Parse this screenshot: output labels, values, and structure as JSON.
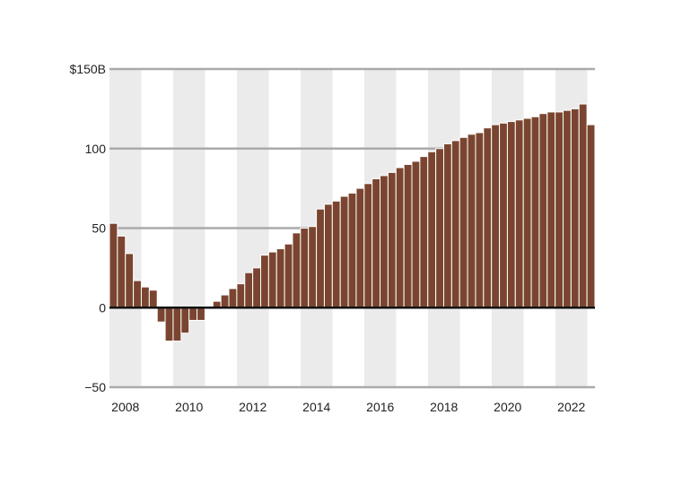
{
  "chart_data": {
    "type": "bar",
    "title": "",
    "xlabel": "",
    "ylabel": "",
    "ylim": [
      -50,
      150
    ],
    "y_ticks": [
      {
        "value": 150,
        "label": "$150B"
      },
      {
        "value": 100,
        "label": "100"
      },
      {
        "value": 50,
        "label": "50"
      },
      {
        "value": 0,
        "label": "0"
      },
      {
        "value": -50,
        "label": "−50"
      }
    ],
    "x_tick_labels": [
      "2008",
      "2010",
      "2012",
      "2014",
      "2016",
      "2018",
      "2020",
      "2022"
    ],
    "x_start_year": 2008,
    "x_end_year": 2023,
    "grid": true,
    "alternating_year_shading": true,
    "series": [
      {
        "values": [
          53,
          45,
          34,
          17,
          13,
          11,
          -9,
          -21,
          -21,
          -16,
          -8,
          -8,
          -1,
          4,
          8,
          12,
          15,
          22,
          25,
          33,
          35,
          37,
          40,
          47,
          50,
          51,
          62,
          65,
          67,
          70,
          72,
          75,
          78,
          81,
          83,
          85,
          88,
          90,
          92,
          95,
          98,
          100,
          103,
          105,
          107,
          109,
          110,
          113,
          115,
          116,
          117,
          118,
          119,
          120,
          122,
          123,
          123,
          124,
          125,
          128,
          115
        ]
      }
    ],
    "colors": {
      "bar": "#7a4530",
      "bar_border": "#ffffff",
      "band": "#ebebeb",
      "gridline": "#aaaaaa",
      "zero_line": "#111111",
      "text": "#222222"
    }
  }
}
